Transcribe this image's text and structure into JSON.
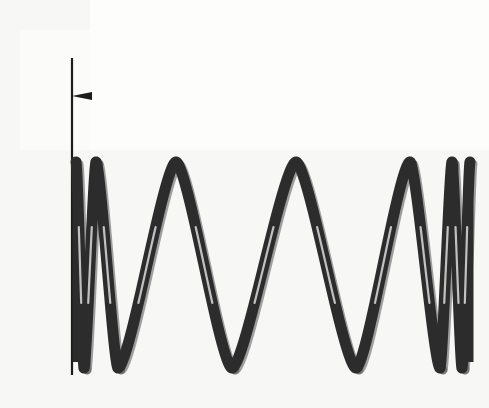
{
  "image": {
    "subject": "compression-spring",
    "colors": {
      "background": "#f7f7f5",
      "wire": "#2c2c2c",
      "wire_shadow": "#555555",
      "highlight": "#dcdcdc",
      "pointer": "#1c1c1c"
    }
  }
}
